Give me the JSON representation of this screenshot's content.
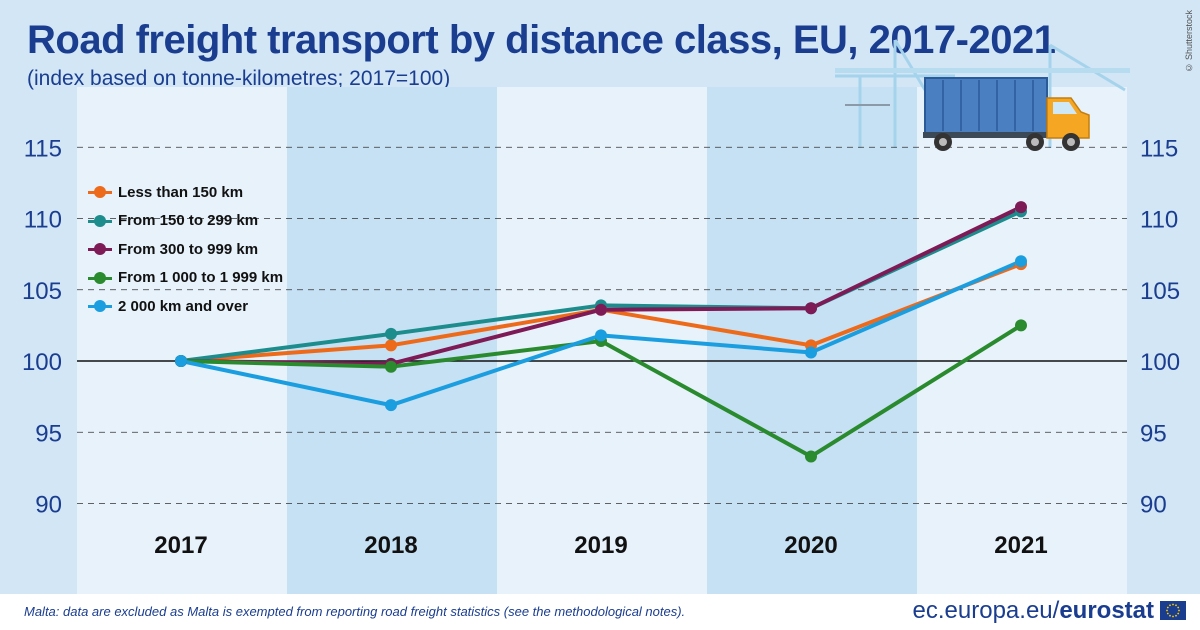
{
  "header": {
    "title": "Road freight transport by distance class, EU, 2017-2021",
    "subtitle": "(index based on tonne-kilometres; 2017=100)",
    "image_credit": "© Shutterstock"
  },
  "footer": {
    "note": "Malta: data are excluded as Malta is exempted from reporting road freight statistics (see the methodological notes).",
    "brand_domain": "ec.europa.eu/",
    "brand_name": "eurostat",
    "flag_icon": "eu-flag-icon"
  },
  "illustration": {
    "icon": "truck-with-container-and-cranes-icon"
  },
  "chart_data": {
    "type": "line",
    "categories": [
      "2017",
      "2018",
      "2019",
      "2020",
      "2021"
    ],
    "ylim": [
      88,
      118
    ],
    "yticks": [
      "90",
      "95",
      "100",
      "105",
      "110",
      "115"
    ],
    "grid": "dashed-horizontal",
    "baseline": 100,
    "legend_placement": "top-left",
    "series": [
      {
        "name": "Less than 150 km",
        "color": "#ee6a1b",
        "values": [
          100,
          101.1,
          103.6,
          101.1,
          106.8
        ]
      },
      {
        "name": "From 150 to 299 km",
        "color": "#1c8c8c",
        "values": [
          100,
          101.9,
          103.9,
          103.7,
          110.5
        ]
      },
      {
        "name": "From 300 to 999 km",
        "color": "#7e1a55",
        "values": [
          100,
          99.8,
          103.6,
          103.7,
          110.8
        ]
      },
      {
        "name": "From 1 000 to 1 999 km",
        "color": "#2a8a2e",
        "values": [
          100,
          99.6,
          101.4,
          93.3,
          102.5
        ]
      },
      {
        "name": "2 000 km and over",
        "color": "#1a9ee0",
        "values": [
          100,
          96.9,
          101.8,
          100.6,
          107.0
        ]
      }
    ]
  }
}
